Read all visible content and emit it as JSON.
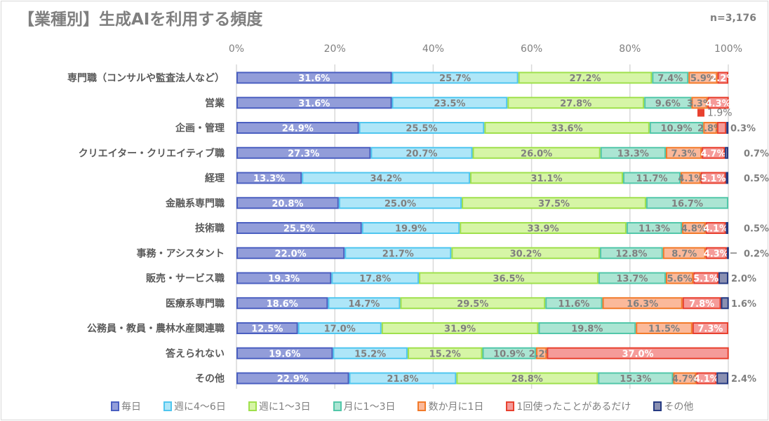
{
  "chart_data": {
    "type": "bar",
    "orientation": "horizontal-stacked-100",
    "title": "【業種別】生成AIを利用する頻度",
    "note": "n=3,176",
    "xlim": [
      0,
      100
    ],
    "x_ticks": [
      "0%",
      "20%",
      "40%",
      "60%",
      "80%",
      "100%"
    ],
    "grid": true,
    "legend_position": "bottom",
    "categories": [
      "専門職（コンサルや監査法人など）",
      "営業",
      "企画・管理",
      "クリエイター・クリエイティブ職",
      "経理",
      "金融系専門職",
      "技術職",
      "事務・アシスタント",
      "販売・サービス職",
      "医療系専門職",
      "公務員・教員・農林水産関連職",
      "答えられない",
      "その他"
    ],
    "series": [
      {
        "name": "毎日",
        "fill": "#929dd9",
        "stroke": "#4a5fc1",
        "label_color": "#ffffff",
        "values": [
          31.6,
          31.6,
          24.9,
          27.3,
          13.3,
          20.8,
          25.5,
          22.0,
          19.3,
          18.6,
          12.5,
          19.6,
          22.9
        ]
      },
      {
        "name": "週に4〜6日",
        "fill": "#aee6f8",
        "stroke": "#4fc6ef",
        "label_color": "#7f7f7f",
        "values": [
          25.7,
          23.5,
          25.5,
          20.7,
          34.2,
          25.0,
          19.9,
          21.7,
          17.8,
          14.7,
          17.0,
          15.2,
          21.8
        ]
      },
      {
        "name": "週に1〜3日",
        "fill": "#d6f5a6",
        "stroke": "#9fe04c",
        "label_color": "#7f7f7f",
        "values": [
          27.2,
          27.8,
          33.6,
          26.0,
          31.1,
          37.5,
          33.9,
          30.2,
          36.5,
          29.5,
          31.9,
          15.2,
          28.8
        ]
      },
      {
        "name": "月に1〜3日",
        "fill": "#abe5d3",
        "stroke": "#52c7a9",
        "label_color": "#7f7f7f",
        "values": [
          7.4,
          9.6,
          10.9,
          13.3,
          11.7,
          16.7,
          11.3,
          12.8,
          13.7,
          11.6,
          19.8,
          10.9,
          15.3
        ]
      },
      {
        "name": "数か月に1日",
        "fill": "#fbb99a",
        "stroke": "#f27a2a",
        "label_color": "#7f7f7f",
        "values": [
          5.9,
          3.3,
          2.8,
          7.3,
          4.1,
          0,
          4.8,
          8.7,
          5.6,
          16.3,
          11.5,
          2.2,
          4.7
        ]
      },
      {
        "name": "1回使ったことがあるだけ",
        "fill": "#f59b99",
        "stroke": "#e8412f",
        "label_color": "#ffffff",
        "values": [
          2.2,
          4.3,
          1.9,
          4.7,
          5.1,
          0,
          4.1,
          4.3,
          5.1,
          7.8,
          7.3,
          37.0,
          4.1
        ]
      },
      {
        "name": "その他",
        "fill": "#8a90b2",
        "stroke": "#253a82",
        "label_color": "#7f7f7f",
        "values": [
          0,
          0,
          0.3,
          0.7,
          0.5,
          0,
          0.5,
          0.2,
          2.0,
          1.6,
          0,
          0,
          2.4
        ]
      }
    ],
    "callouts": [
      {
        "category": "企画・管理",
        "series": "1回使ったことがあるだけ",
        "label": "1.9%"
      }
    ]
  }
}
